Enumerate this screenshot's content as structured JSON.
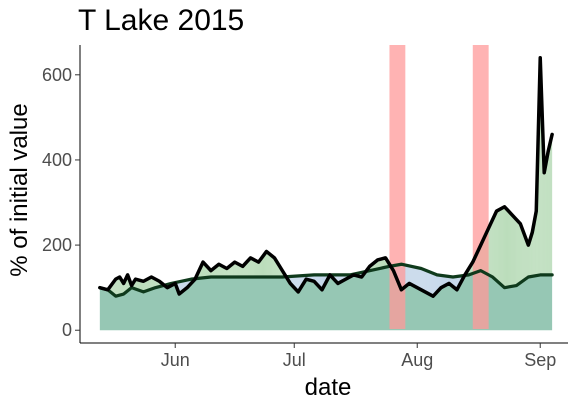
{
  "chart_data": {
    "type": "area",
    "title": "T Lake 2015",
    "xlabel": "date",
    "ylabel": "% of initial value",
    "xlim": [
      "2015-05-08",
      "2015-09-08"
    ],
    "ylim": [
      -30,
      670
    ],
    "grid": false,
    "x_ticks": [
      {
        "date": "2015-06-01",
        "label": "Jun"
      },
      {
        "date": "2015-07-01",
        "label": "Jul"
      },
      {
        "date": "2015-08-01",
        "label": "Aug"
      },
      {
        "date": "2015-09-01",
        "label": "Sep"
      }
    ],
    "y_ticks": [
      0,
      200,
      400,
      600
    ],
    "highlight_periods": [
      {
        "start": "2015-07-25",
        "end": "2015-07-29"
      },
      {
        "start": "2015-08-15",
        "end": "2015-08-19"
      }
    ],
    "colors": {
      "black_line": "#000000",
      "green_line": "#0f3a1c",
      "base_fill": "#96c7b4",
      "above_fill": "#bbddbb",
      "below_fill": "#c5d7ea",
      "highlight": "#ff9999"
    },
    "series": [
      {
        "color": "black",
        "x": [
          "2015-05-13",
          "2015-05-15",
          "2015-05-17",
          "2015-05-18",
          "2015-05-19",
          "2015-05-20",
          "2015-05-21",
          "2015-05-22",
          "2015-05-24",
          "2015-05-26",
          "2015-05-28",
          "2015-05-30",
          "2015-06-01",
          "2015-06-02",
          "2015-06-04",
          "2015-06-06",
          "2015-06-08",
          "2015-06-10",
          "2015-06-12",
          "2015-06-14",
          "2015-06-16",
          "2015-06-18",
          "2015-06-20",
          "2015-06-22",
          "2015-06-24",
          "2015-06-26",
          "2015-06-28",
          "2015-06-30",
          "2015-07-02",
          "2015-07-04",
          "2015-07-06",
          "2015-07-08",
          "2015-07-10",
          "2015-07-12",
          "2015-07-14",
          "2015-07-16",
          "2015-07-18",
          "2015-07-20",
          "2015-07-22",
          "2015-07-24",
          "2015-07-26",
          "2015-07-28",
          "2015-07-30",
          "2015-08-01",
          "2015-08-03",
          "2015-08-05",
          "2015-08-07",
          "2015-08-09",
          "2015-08-11",
          "2015-08-13",
          "2015-08-15",
          "2015-08-17",
          "2015-08-19",
          "2015-08-21",
          "2015-08-23",
          "2015-08-25",
          "2015-08-27",
          "2015-08-29",
          "2015-08-30",
          "2015-08-31",
          "2015-09-01",
          "2015-09-02",
          "2015-09-03",
          "2015-09-04"
        ],
        "y": [
          100,
          95,
          120,
          125,
          110,
          130,
          105,
          120,
          115,
          125,
          115,
          100,
          110,
          85,
          100,
          120,
          160,
          140,
          155,
          145,
          160,
          150,
          170,
          160,
          185,
          170,
          140,
          110,
          90,
          120,
          115,
          95,
          130,
          110,
          120,
          130,
          125,
          150,
          165,
          170,
          140,
          95,
          110,
          100,
          90,
          80,
          100,
          110,
          95,
          130,
          160,
          200,
          240,
          280,
          290,
          270,
          250,
          200,
          230,
          280,
          640,
          370,
          420,
          460
        ]
      },
      {
        "color": "dark green",
        "x": [
          "2015-05-13",
          "2015-05-15",
          "2015-05-17",
          "2015-05-19",
          "2015-05-21",
          "2015-05-24",
          "2015-05-27",
          "2015-05-31",
          "2015-06-05",
          "2015-06-10",
          "2015-06-20",
          "2015-06-28",
          "2015-07-06",
          "2015-07-15",
          "2015-07-20",
          "2015-07-25",
          "2015-07-28",
          "2015-08-02",
          "2015-08-06",
          "2015-08-10",
          "2015-08-14",
          "2015-08-17",
          "2015-08-20",
          "2015-08-23",
          "2015-08-26",
          "2015-08-29",
          "2015-09-01",
          "2015-09-04"
        ],
        "y": [
          100,
          95,
          80,
          85,
          100,
          90,
          100,
          110,
          120,
          125,
          125,
          125,
          130,
          130,
          140,
          150,
          155,
          145,
          130,
          125,
          130,
          140,
          125,
          100,
          105,
          125,
          130,
          130
        ]
      }
    ]
  }
}
